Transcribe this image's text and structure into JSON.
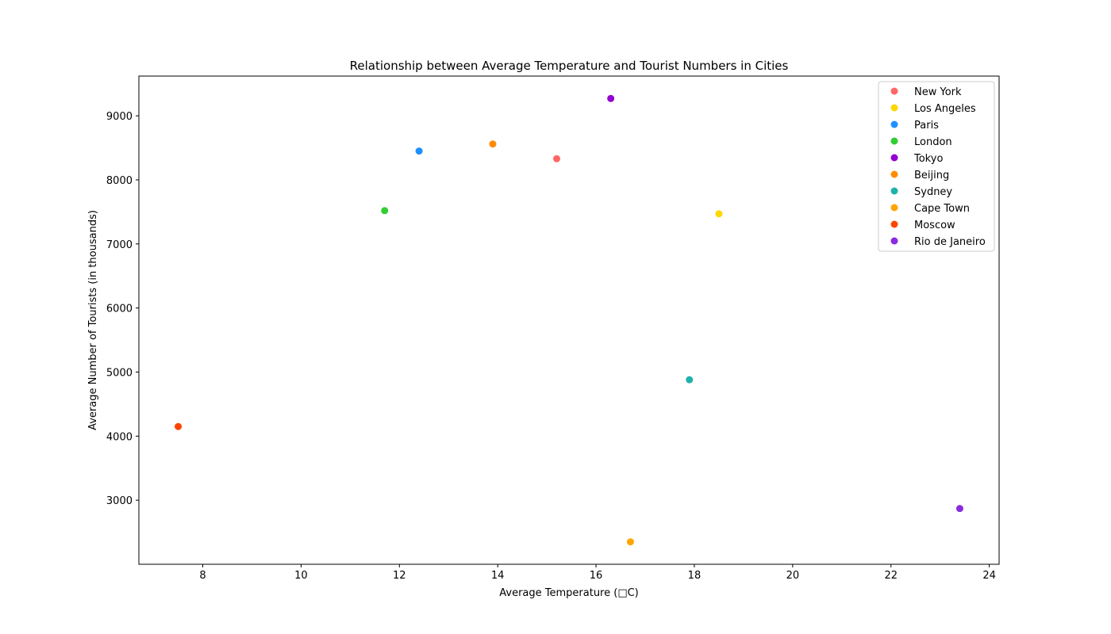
{
  "chart_data": {
    "type": "scatter",
    "title": "Relationship between Average Temperature and Tourist Numbers in Cities",
    "xlabel": "Average Temperature (□C)",
    "ylabel": "Average Number of Tourists (in thousands)",
    "xlim": [
      6.7,
      24.2
    ],
    "ylim": [
      2000,
      9620
    ],
    "xticks": [
      8,
      10,
      12,
      14,
      16,
      18,
      20,
      22,
      24
    ],
    "yticks": [
      3000,
      4000,
      5000,
      6000,
      7000,
      8000,
      9000
    ],
    "grid": false,
    "legend_position": "top-right",
    "series": [
      {
        "name": "New York",
        "x": 15.2,
        "y": 8330,
        "color": "#ff6666"
      },
      {
        "name": "Los Angeles",
        "x": 18.5,
        "y": 7470,
        "color": "#ffd700"
      },
      {
        "name": "Paris",
        "x": 12.4,
        "y": 8450,
        "color": "#1e90ff"
      },
      {
        "name": "London",
        "x": 11.7,
        "y": 7520,
        "color": "#32cd32"
      },
      {
        "name": "Tokyo",
        "x": 16.3,
        "y": 9270,
        "color": "#9400d3"
      },
      {
        "name": "Beijing",
        "x": 13.9,
        "y": 8560,
        "color": "#ff8c00"
      },
      {
        "name": "Sydney",
        "x": 17.9,
        "y": 4880,
        "color": "#20b2aa"
      },
      {
        "name": "Cape Town",
        "x": 16.7,
        "y": 2350,
        "color": "#ffa500"
      },
      {
        "name": "Moscow",
        "x": 7.5,
        "y": 4150,
        "color": "#ff4500"
      },
      {
        "name": "Rio de Janeiro",
        "x": 23.4,
        "y": 2870,
        "color": "#8a2be2"
      }
    ]
  }
}
